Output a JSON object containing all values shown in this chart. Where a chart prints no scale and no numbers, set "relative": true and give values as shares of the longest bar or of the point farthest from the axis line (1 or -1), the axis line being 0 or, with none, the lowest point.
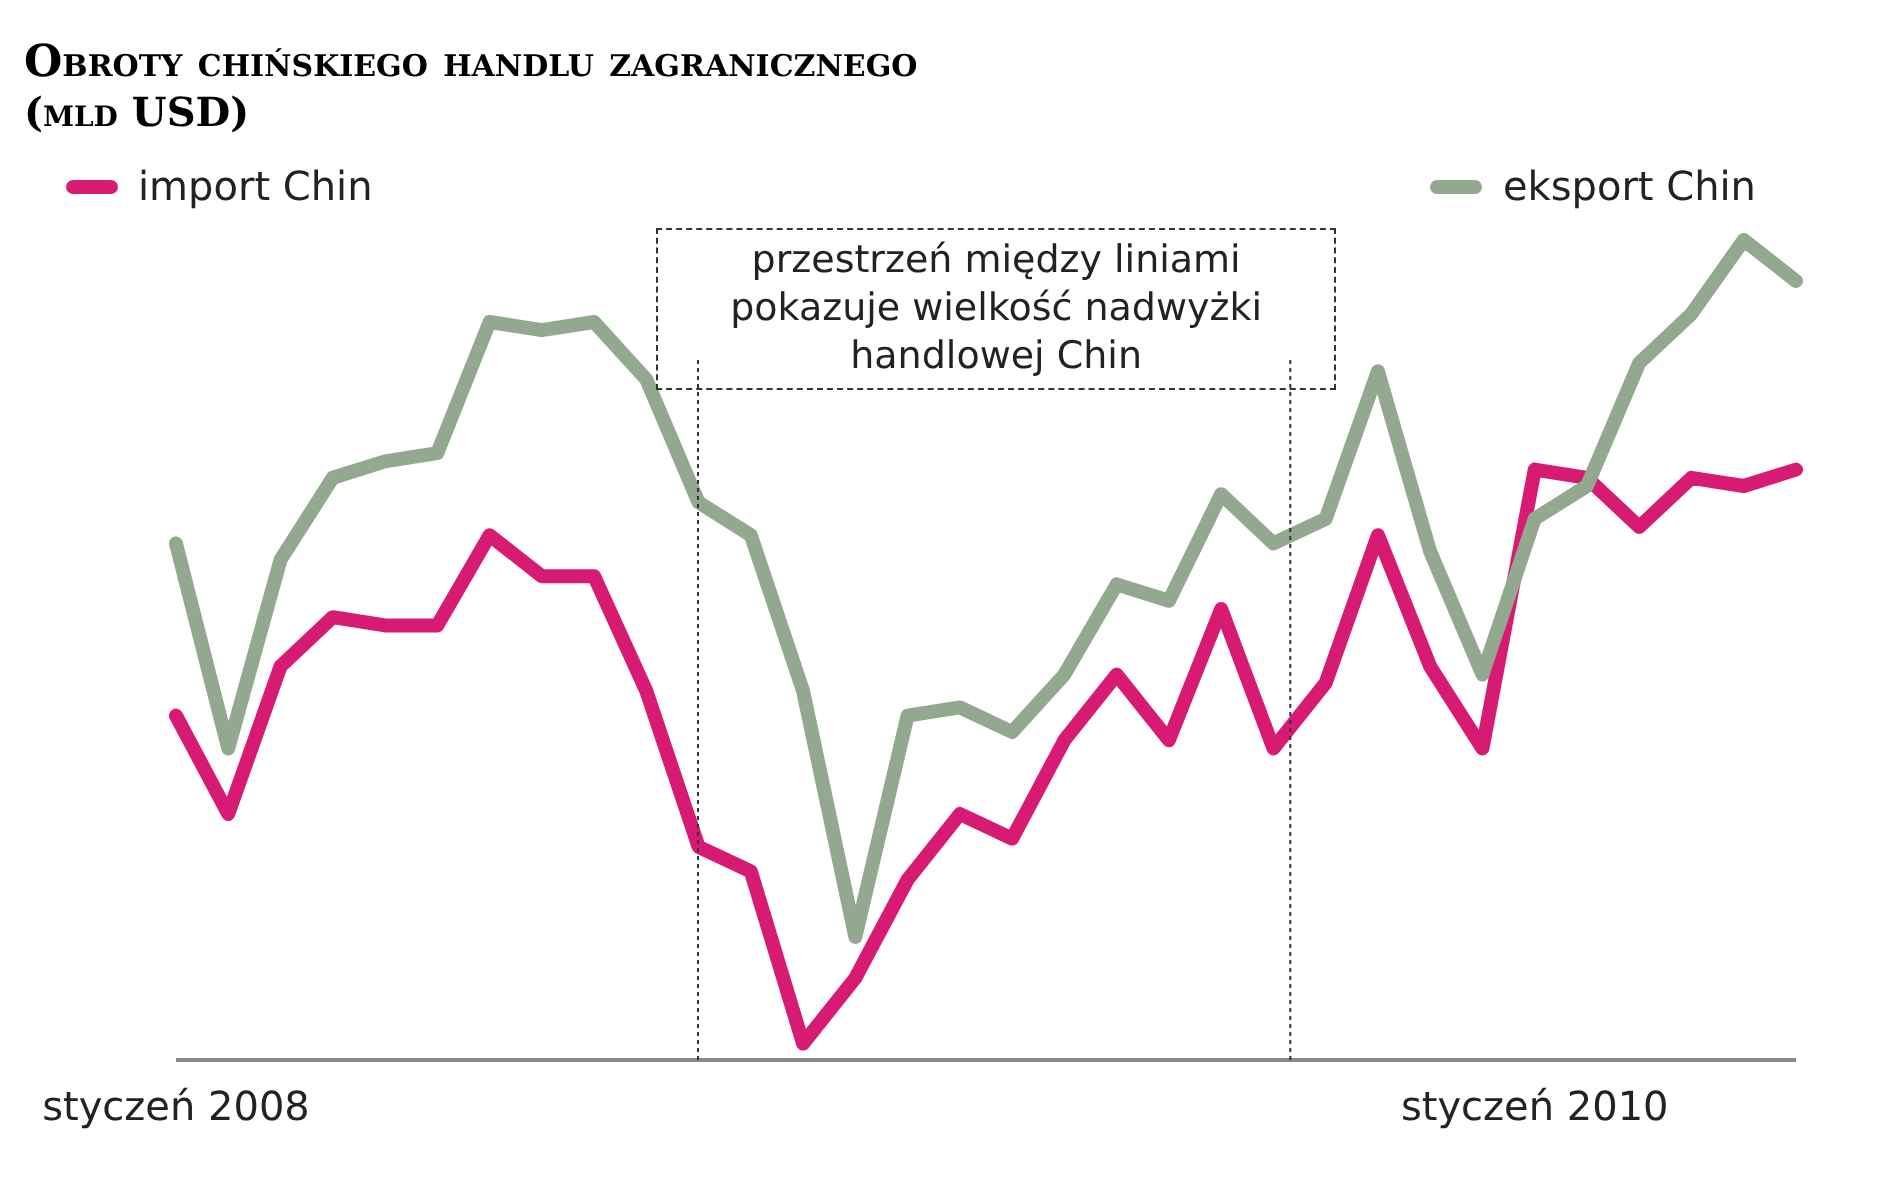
{
  "chart_data": {
    "type": "line",
    "title": "Obroty chińskiego handlu zagranicznego",
    "subtitle": "(mld USD)",
    "relative": true,
    "legend": "top",
    "categories": [
      "styczeń 2008",
      null,
      null,
      null,
      null,
      null,
      null,
      null,
      null,
      null,
      null,
      null,
      null,
      null,
      null,
      null,
      null,
      null,
      null,
      null,
      null,
      null,
      null,
      null,
      null,
      null,
      "styczeń 2010",
      null,
      null,
      null,
      null,
      null
    ],
    "series": [
      {
        "name": "import Chin",
        "color": "#d81b72",
        "values": [
          0.42,
          0.3,
          0.48,
          0.54,
          0.53,
          0.53,
          0.64,
          0.59,
          0.59,
          0.45,
          0.26,
          0.23,
          0.02,
          0.1,
          0.22,
          0.3,
          0.27,
          0.39,
          0.47,
          0.39,
          0.55,
          0.38,
          0.46,
          0.64,
          0.48,
          0.38,
          0.72,
          0.71,
          0.65,
          0.71,
          0.7,
          0.72
        ]
      },
      {
        "name": "eksport Chin",
        "color": "#92a98f",
        "values": [
          0.63,
          0.38,
          0.61,
          0.71,
          0.73,
          0.74,
          0.9,
          0.89,
          0.9,
          0.83,
          0.68,
          0.64,
          0.45,
          0.15,
          0.42,
          0.43,
          0.4,
          0.47,
          0.58,
          0.56,
          0.69,
          0.63,
          0.66,
          0.84,
          0.62,
          0.47,
          0.66,
          0.7,
          0.85,
          0.91,
          1,
          0.95
        ]
      }
    ],
    "annotations": [
      "przestrzeń między liniami pokazuje wielkość nadwyżki handlowej Chin"
    ]
  }
}
